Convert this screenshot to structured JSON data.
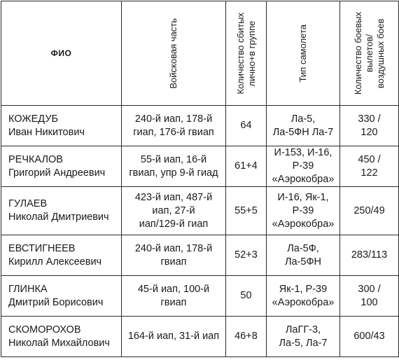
{
  "headers": {
    "fio": "ФИО",
    "unit": "Войсковая часть",
    "kills": "Количество сбитых\nлично+в группе",
    "plane": "Тип самолета",
    "flights": "Количество боевых\nвылетов/\nвоздушных боев"
  },
  "rows": [
    {
      "surname": "КОЖЕДУБ",
      "given": "Иван Никитович",
      "unit": "240-й иап, 178-й\nгиап, 176-й гвиап",
      "kills": "64",
      "plane": "Ла-5,\nЛа-5ФН Ла-7",
      "flights": "330 /\n120"
    },
    {
      "surname": "РЕЧКАЛОВ",
      "given": "Григорий Андреевич",
      "unit": "55-й иап, 16-й\nгвиап, упр 9-й гиад",
      "kills": "61+4",
      "plane": "И-153, И-16,\nР-39\n«Аэрокобра»",
      "flights": "450 /\n122"
    },
    {
      "surname": "ГУЛАЕВ",
      "given": "Николай Дмитриевич",
      "unit": "423-й иап, 487-й\nиап, 27-й\nиап/129-й гиап",
      "kills": "55+5",
      "plane": "И-16, Як-1,\nР-39\n«Аэрокобра»",
      "flights": "250/49"
    },
    {
      "surname": "ЕВСТИГНЕЕВ",
      "given": "Кирилл Алексеевич",
      "unit": "240-й иап, 178-й\nгвиап",
      "kills": "52+3",
      "plane": "Ла-5Ф,\nЛа-5ФН",
      "flights": "283/113"
    },
    {
      "surname": "ГЛИНКА",
      "given": "Дмитрий Борисович",
      "unit": "45-й иап, 100-й\nгвиап",
      "kills": "50",
      "plane": "Як-1, Р-39\n«Аэрокобра»",
      "flights": "300 /\n100"
    },
    {
      "surname": "СКОМОРОХОВ",
      "given": "Николай Михайлович",
      "unit": "164-й иап, 31-й иап",
      "kills": "46+8",
      "plane": "ЛаГГ-3,\nЛа-5, Ла-7",
      "flights": "600/43"
    }
  ]
}
